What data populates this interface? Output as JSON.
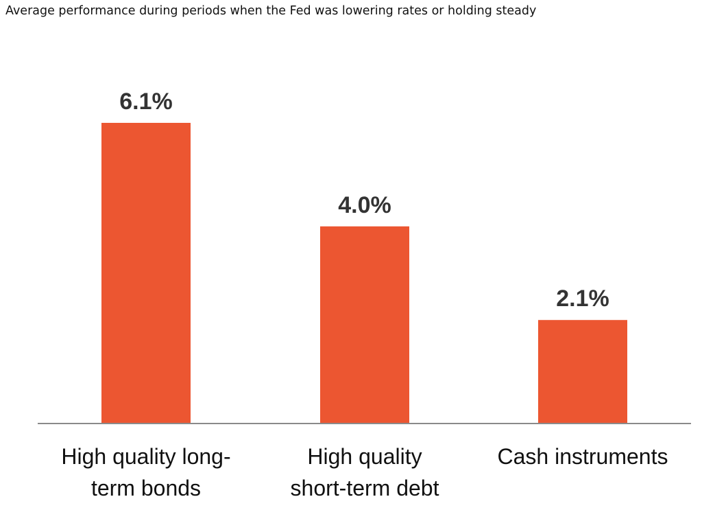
{
  "title": "Average performance during periods when the Fed was lowering rates or holding steady",
  "colors": {
    "bar": "#EC5631",
    "axis": "#8a8a8a",
    "value_text": "#333333",
    "label_text": "#111111"
  },
  "chart_data": {
    "type": "bar",
    "title": "Average performance during periods when the Fed was lowering rates or holding steady",
    "categories": [
      [
        "High quality long-",
        "term bonds"
      ],
      [
        "High quality",
        "short-term debt"
      ],
      [
        "Cash instruments"
      ]
    ],
    "values": [
      6.1,
      4.0,
      2.1
    ],
    "value_labels": [
      "6.1%",
      "4.0%",
      "2.1%"
    ],
    "xlabel": "",
    "ylabel": "",
    "ylim": [
      0,
      7.2
    ],
    "grid": false,
    "legend": "none"
  }
}
